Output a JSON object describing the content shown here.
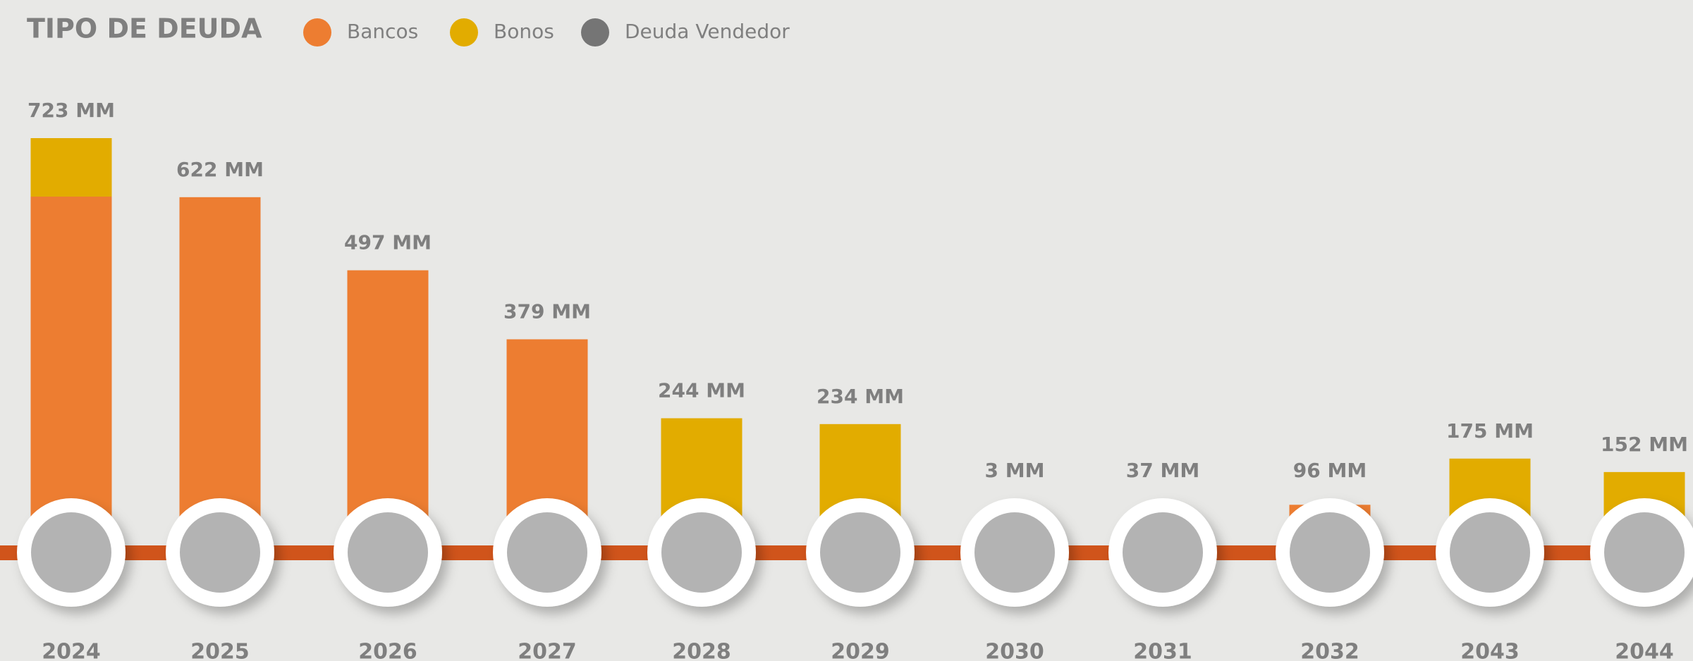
{
  "chart_data": {
    "type": "stacked_bar",
    "title": "TIPO DE DEUDA",
    "categories": [
      "2024",
      "2025",
      "2026",
      "2027",
      "2028",
      "2029",
      "2030",
      "2031",
      "2032",
      "2043",
      "2044"
    ],
    "series": [
      {
        "name": "Bancos",
        "color": "#ed7d31",
        "values": [
          623,
          622,
          497,
          379,
          78,
          51,
          3,
          37,
          96,
          0,
          0
        ]
      },
      {
        "name": "Bonos",
        "color": "#e2ac00",
        "values": [
          100,
          0,
          0,
          0,
          166,
          183,
          0,
          0,
          0,
          175,
          152
        ]
      },
      {
        "name": "Deuda Vendedor",
        "color": "#757575",
        "values": [
          0,
          0,
          0,
          0,
          0,
          0,
          0,
          0,
          0,
          0,
          0
        ]
      }
    ],
    "totals": [
      723,
      622,
      497,
      379,
      244,
      234,
      3,
      37,
      96,
      175,
      152
    ],
    "value_labels": [
      "723 MM",
      "622 MM",
      "497 MM",
      "379 MM",
      "244 MM",
      "234 MM",
      "3 MM",
      "37 MM",
      "96 MM",
      "175 MM",
      "152 MM"
    ]
  }
}
